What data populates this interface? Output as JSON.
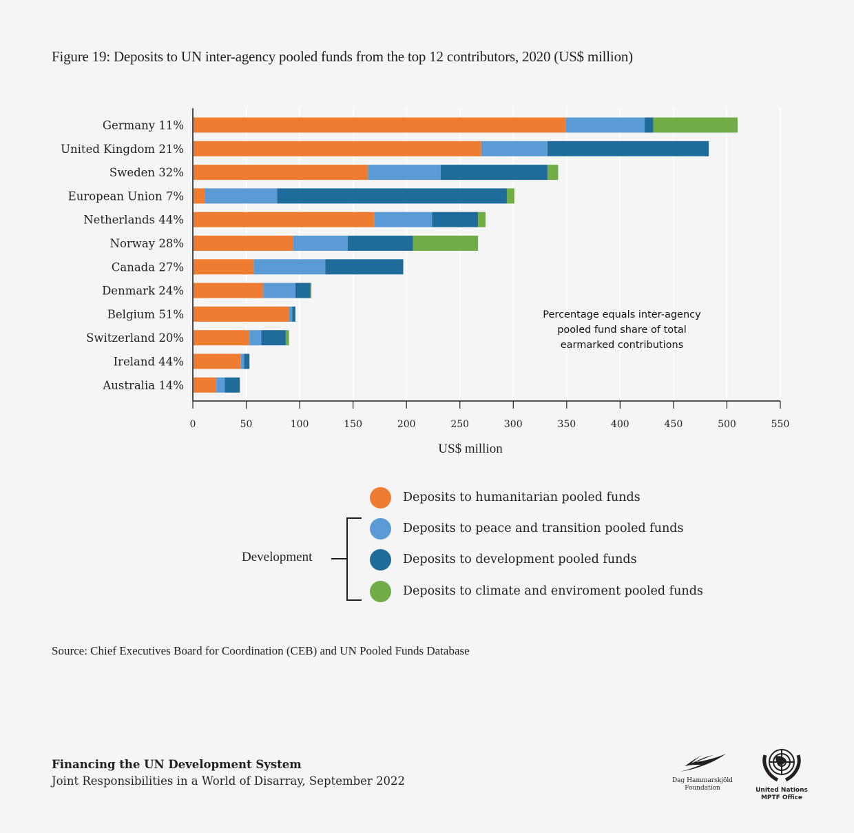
{
  "title": "Figure 19: Deposits to UN inter-agency pooled funds from the top 12 contributors, 2020 (US$ million)",
  "note": "Percentage equals inter-agency pooled fund share of total earmarked contributions",
  "source": "Source: Chief Executives Board for Coordination (CEB) and UN Pooled Funds Database",
  "footer": {
    "title": "Financing the UN Development System",
    "subtitle": "Joint Responsibilities in a World of Disarray, September 2022"
  },
  "logos": {
    "dhf": "Dag Hammarskjöld Foundation",
    "dhf_line1": "Dag Hammarskjöld",
    "dhf_line2": "Foundation",
    "un_line1": "United Nations",
    "un_line2": "MPTF Office"
  },
  "legend": {
    "group_label": "Development",
    "items": [
      {
        "label": "Deposits to humanitarian pooled funds",
        "color": "#EE7D31"
      },
      {
        "label": "Deposits to peace and transition pooled funds",
        "color": "#5B9BD5"
      },
      {
        "label": "Deposits to development pooled funds",
        "color": "#1F6B99"
      },
      {
        "label": "Deposits to climate and enviroment pooled funds",
        "color": "#70AD47"
      }
    ]
  },
  "chart_data": {
    "type": "bar",
    "orientation": "horizontal",
    "stacked": true,
    "title": "Figure 19: Deposits to UN inter-agency pooled funds from the top 12 contributors, 2020 (US$ million)",
    "xlabel": "US$ million",
    "ylabel": "",
    "xlim": [
      0,
      550
    ],
    "xticks": [
      0,
      50,
      100,
      150,
      200,
      250,
      300,
      350,
      400,
      450,
      500,
      550
    ],
    "grid": "vertical",
    "legend_position": "bottom",
    "categories": [
      "Germany 11%",
      "United Kingdom 21%",
      "Sweden 32%",
      "European Union 7%",
      "Netherlands 44%",
      "Norway 28%",
      "Canada 27%",
      "Denmark 24%",
      "Belgium 51%",
      "Switzerland 20%",
      "Ireland 44%",
      "Australia 14%"
    ],
    "series": [
      {
        "name": "Deposits to humanitarian pooled funds",
        "color": "#EE7D31",
        "values": [
          349,
          270,
          164,
          11,
          170,
          94,
          57,
          66,
          90,
          53,
          45,
          22
        ]
      },
      {
        "name": "Deposits to peace and transition pooled funds",
        "color": "#5B9BD5",
        "values": [
          74,
          62,
          68,
          68,
          54,
          51,
          67,
          30,
          3,
          11,
          3,
          8
        ]
      },
      {
        "name": "Deposits to development pooled funds",
        "color": "#1F6B99",
        "values": [
          8,
          151,
          100,
          215,
          43,
          61,
          73,
          14,
          3,
          23,
          5,
          14
        ]
      },
      {
        "name": "Deposits to climate and enviroment pooled funds",
        "color": "#70AD47",
        "values": [
          79,
          0,
          10,
          7,
          7,
          61,
          0,
          1,
          0,
          3,
          0,
          0
        ]
      }
    ],
    "annotations": [
      "Percentage equals inter-agency pooled fund share of total earmarked contributions"
    ]
  }
}
